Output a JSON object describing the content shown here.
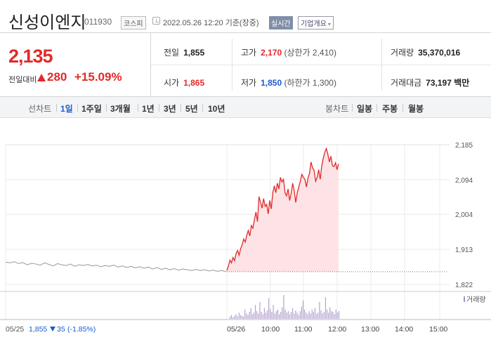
{
  "header": {
    "stock_name": "신성이엔지",
    "stock_code": "011930",
    "market_badge": "코스피",
    "timestamp": "2022.05.26 12:20 기준(장중)",
    "realtime_button": "실시간",
    "company_info_button": "기업개요",
    "company_info_caret": "▾"
  },
  "price": {
    "current": "2,135",
    "vs_prev_label": "전일대비",
    "change_value": "280",
    "change_pct": "+15.09%",
    "up_color": "#e12a2a"
  },
  "stats": {
    "prev_close": {
      "label": "전일",
      "value": "1,855"
    },
    "high": {
      "label": "고가",
      "value": "2,170",
      "limit": "(상한가 2,410)"
    },
    "volume": {
      "label": "거래량",
      "value": "35,370,016"
    },
    "open": {
      "label": "시가",
      "value": "1,865"
    },
    "low": {
      "label": "저가",
      "value": "1,850",
      "limit": "(하한가 1,300)"
    },
    "amount": {
      "label": "거래대금",
      "value": "73,197",
      "unit": "백만"
    }
  },
  "tabs": {
    "line_chart_label": "선차트",
    "line_items": [
      "1일",
      "1주일",
      "3개월",
      "1년",
      "3년",
      "5년",
      "10년"
    ],
    "selected": "1일",
    "candle_chart_label": "봉차트",
    "candle_items": [
      "일봉",
      "주봉",
      "월봉"
    ]
  },
  "chart_data": {
    "type": "line",
    "title": "",
    "ylabel": "",
    "xlabel": "",
    "ylim": [
      1800,
      2200
    ],
    "y_ticks": [
      "2,185",
      "2,094",
      "2,004",
      "1,913",
      "1,822"
    ],
    "x_ticks": [
      "05/26",
      "10:00",
      "11:00",
      "12:00",
      "13:00",
      "14:00",
      "15:00"
    ],
    "prev_day": {
      "date": "05/25",
      "close": "1,855",
      "change": "35",
      "change_pct": "(-1.85%)",
      "color": "#999999",
      "values": [
        1880,
        1878,
        1881,
        1876,
        1879,
        1873,
        1877,
        1875,
        1872,
        1878,
        1874,
        1870,
        1876,
        1873,
        1871,
        1875,
        1869,
        1873,
        1871,
        1874,
        1870,
        1872,
        1868,
        1871,
        1869,
        1872,
        1867,
        1870,
        1866,
        1869,
        1865,
        1868,
        1864,
        1867,
        1862,
        1866,
        1861,
        1864,
        1860,
        1863,
        1859,
        1862,
        1860,
        1858,
        1861,
        1858,
        1860,
        1857,
        1859,
        1856,
        1858,
        1855
      ]
    },
    "today": {
      "color": "#e12a2a",
      "fill": "#fde3e5",
      "values": [
        1858,
        1870,
        1885,
        1878,
        1892,
        1884,
        1902,
        1910,
        1898,
        1915,
        1925,
        1940,
        1932,
        1950,
        1962,
        1948,
        1975,
        1968,
        1990,
        2010,
        1985,
        2050,
        2035,
        2020,
        2045,
        2025,
        2030,
        2005,
        2040,
        2018,
        2060,
        2078,
        2060,
        2085,
        2070,
        2100,
        2088,
        2095,
        2060,
        2052,
        2070,
        2040,
        2058,
        2085,
        2065,
        2035,
        2060,
        2075,
        2090,
        2108,
        2100,
        2095,
        2075,
        2098,
        2110,
        2140,
        2125,
        2118,
        2090,
        2100,
        2120,
        2095,
        2130,
        2150,
        2165,
        2175,
        2160,
        2140,
        2155,
        2130,
        2128,
        2138,
        2120,
        2135
      ]
    },
    "prev_close_line": 1855,
    "volume_label": "거래량",
    "volume_color": "#a690c8",
    "volume_bars": [
      3,
      5,
      2,
      4,
      6,
      3,
      8,
      5,
      4,
      3,
      12,
      7,
      5,
      9,
      14,
      6,
      8,
      18,
      10,
      7,
      22,
      9,
      6,
      14,
      8,
      11,
      27,
      13,
      9,
      18,
      7,
      10,
      12,
      6,
      9,
      15,
      31,
      12,
      8,
      10,
      6,
      9,
      14,
      7,
      11,
      8,
      5,
      10,
      16,
      24,
      12,
      8,
      6,
      10,
      7,
      12,
      9,
      14,
      6,
      8,
      22,
      11,
      7,
      9,
      28,
      12,
      8,
      15,
      10,
      9,
      6,
      12,
      8,
      10
    ]
  }
}
